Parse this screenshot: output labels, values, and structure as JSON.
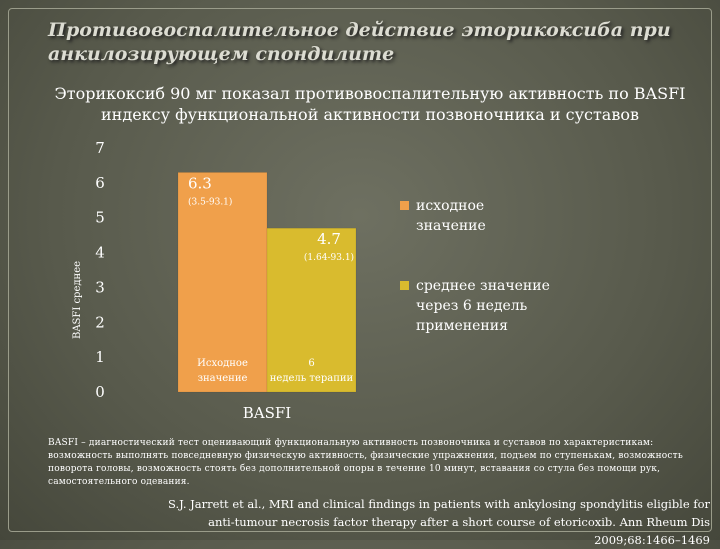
{
  "slide": {
    "title": "Противовоспалительное действие эторикоксиба при анкилозирующем спондилите",
    "subtitle": "Эторикоксиб 90 мг показал противовоспалительную активность по BASFI индексу функциональной активности позвоночника и суставов",
    "footnote": "BASFI – диагностический тест оценивающий функциональную активность позвоночника и суставов по характеристикам: возможность выполнять повседневную физическую активность, физические упражнения, подъем по ступенькам, возможность поворота головы, возможность стоять без дополнительной опоры в течение 10 минут, вставания со стула без помощи рук, самостоятельного одевания.",
    "citation": "S.J. Jarrett et al., MRI and clinical findings in patients with ankylosing spondylitis eligible for anti-tumour necrosis factor therapy after a short course of etoricoxib. Ann Rheum Dis 2009;68:1466–1469"
  },
  "chart_data": {
    "type": "bar",
    "xlabel": "BASFI",
    "ylabel": "BASFI среднее",
    "ylim": [
      0,
      7
    ],
    "yticks": [
      "0",
      "1",
      "2",
      "3",
      "4",
      "5",
      "6",
      "7"
    ],
    "grid": false,
    "legend_position": "right",
    "series": [
      {
        "name": "исходное значение",
        "value": 6.3,
        "value_label": "6.3",
        "range_label": "(3.5-93.1)",
        "bar_label": "Исходное значение",
        "color": "#f0a04b"
      },
      {
        "name": "среднее значение через 6 недель применения",
        "value": 4.7,
        "value_label": "4.7",
        "range_label": "(1.64-93.1)",
        "bar_label": "6 недель терапии",
        "color": "#d9bb2e"
      }
    ]
  }
}
